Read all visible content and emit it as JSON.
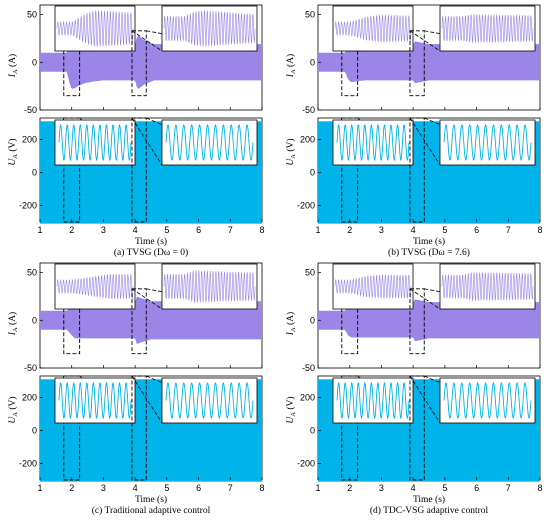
{
  "colors": {
    "current": "#9b86e8",
    "voltage": "#00b4ea",
    "frame": "#000000",
    "dash": "#000000"
  },
  "chart_data": [
    {
      "type": "line",
      "caption": "(a) TVSG (Dω = 0)",
      "current": {
        "ylabel": "IA (A)",
        "yticks": [
          "50",
          "0",
          "-50"
        ],
        "ylim": [
          -50,
          60
        ],
        "x": [
          1,
          1.85,
          1.9,
          1.95,
          2.0,
          2.1,
          2.2,
          2.4,
          2.7,
          3.0,
          3.5,
          4.0,
          4.05,
          4.1,
          4.3,
          4.6,
          8
        ],
        "amplitude": [
          10,
          10,
          18,
          24,
          28,
          27,
          25,
          22,
          20,
          19,
          19,
          19,
          26,
          28,
          23,
          19,
          19
        ]
      },
      "voltage": {
        "ylabel": "UA (V)",
        "yticks": [
          "200",
          "0",
          "-200"
        ],
        "ylim": [
          -300,
          330
        ],
        "amplitude": 310
      },
      "xlabel": "Time (s)",
      "xticks": [
        "1",
        "2",
        "3",
        "4",
        "5",
        "6",
        "7",
        "8"
      ],
      "xlim": [
        1,
        8
      ],
      "zoom_windows": [
        [
          1.75,
          2.25
        ],
        [
          3.9,
          4.35
        ]
      ]
    },
    {
      "type": "line",
      "caption": "(b) TVSG (Dω = 7.6)",
      "current": {
        "ylabel": "IA (A)",
        "yticks": [
          "50",
          "0",
          "-50"
        ],
        "ylim": [
          -50,
          60
        ],
        "x": [
          1,
          1.85,
          1.95,
          2.05,
          2.2,
          2.5,
          3.0,
          4.0,
          4.05,
          4.2,
          4.5,
          8
        ],
        "amplitude": [
          10,
          10,
          18,
          21,
          20,
          19,
          19,
          19,
          22,
          21,
          19,
          19
        ]
      },
      "voltage": {
        "ylabel": "UA (V)",
        "yticks": [
          "200",
          "0",
          "-200"
        ],
        "ylim": [
          -300,
          330
        ],
        "amplitude": 310
      },
      "xlabel": "Time (s)",
      "xticks": [
        "1",
        "2",
        "3",
        "4",
        "5",
        "6",
        "7",
        "8"
      ],
      "xlim": [
        1,
        8
      ],
      "zoom_windows": [
        [
          1.75,
          2.25
        ],
        [
          3.9,
          4.35
        ]
      ]
    },
    {
      "type": "line",
      "caption": "(c) Traditional adaptive control",
      "current": {
        "ylabel": "IA (A)",
        "yticks": [
          "50",
          "0",
          "-50"
        ],
        "ylim": [
          -50,
          60
        ],
        "x": [
          1,
          1.85,
          1.95,
          2.1,
          2.3,
          2.6,
          3.0,
          4.0,
          4.05,
          4.2,
          4.5,
          8
        ],
        "amplitude": [
          10,
          10,
          14,
          19,
          19,
          19,
          19,
          19,
          25,
          23,
          20,
          20
        ]
      },
      "voltage": {
        "ylabel": "UA (V)",
        "yticks": [
          "200",
          "0",
          "-200"
        ],
        "ylim": [
          -300,
          330
        ],
        "amplitude": 310
      },
      "xlabel": "Time (s)",
      "xticks": [
        "1",
        "2",
        "3",
        "4",
        "5",
        "6",
        "7",
        "8"
      ],
      "xlim": [
        1,
        8
      ],
      "zoom_windows": [
        [
          1.75,
          2.25
        ],
        [
          3.9,
          4.35
        ]
      ]
    },
    {
      "type": "line",
      "caption": "(d) TDC-VSG adaptive control",
      "current": {
        "ylabel": "IA (A)",
        "yticks": [
          "50",
          "0",
          "-50"
        ],
        "ylim": [
          -50,
          60
        ],
        "x": [
          1,
          1.85,
          1.95,
          2.05,
          2.3,
          2.6,
          3.0,
          4.0,
          4.05,
          4.2,
          4.5,
          8
        ],
        "amplitude": [
          10,
          10,
          16,
          18,
          18,
          18,
          18,
          18,
          22,
          21,
          19,
          19
        ]
      },
      "voltage": {
        "ylabel": "UA (V)",
        "yticks": [
          "200",
          "0",
          "-200"
        ],
        "ylim": [
          -300,
          330
        ],
        "amplitude": 310
      },
      "xlabel": "Time (s)",
      "xticks": [
        "1",
        "2",
        "3",
        "4",
        "5",
        "6",
        "7",
        "8"
      ],
      "xlim": [
        1,
        8
      ],
      "zoom_windows": [
        [
          1.75,
          2.25
        ],
        [
          3.9,
          4.35
        ]
      ]
    }
  ]
}
